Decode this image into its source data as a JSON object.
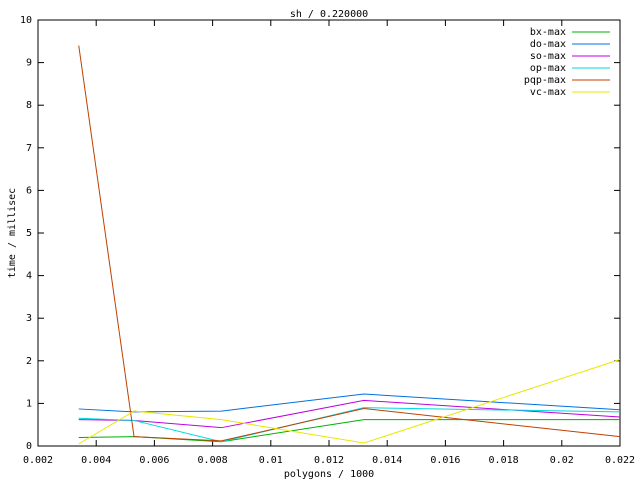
{
  "chart_data": {
    "type": "line",
    "title": "sh / 0.220000",
    "x_label": "polygons / 1000",
    "y_label": "time / millisec",
    "x": [
      0.0034,
      0.0053,
      0.0083,
      0.0132,
      0.022
    ],
    "series": [
      {
        "name": "bx-max",
        "color": "#00b000",
        "values": [
          0.2,
          0.22,
          0.1,
          0.62,
          0.62
        ]
      },
      {
        "name": "do-max",
        "color": "#0070e0",
        "values": [
          0.87,
          0.8,
          0.82,
          1.22,
          0.85
        ]
      },
      {
        "name": "so-max",
        "color": "#c000e0",
        "values": [
          0.62,
          0.6,
          0.43,
          1.07,
          0.68
        ]
      },
      {
        "name": "op-max",
        "color": "#00d8e0",
        "values": [
          0.65,
          0.6,
          0.1,
          0.9,
          0.8
        ]
      },
      {
        "name": "pqp-max",
        "color": "#c04000",
        "values": [
          9.4,
          0.22,
          0.12,
          0.88,
          0.22
        ]
      },
      {
        "name": "vc-max",
        "color": "#e8e800",
        "values": [
          0.05,
          0.82,
          0.62,
          0.07,
          2.03
        ]
      }
    ],
    "xlim": [
      0.002,
      0.022
    ],
    "xticks": [
      0.002,
      0.004,
      0.006,
      0.008,
      0.01,
      0.012,
      0.014,
      0.016,
      0.018,
      0.02,
      0.022
    ],
    "ylim": [
      0,
      10
    ],
    "yticks": [
      0,
      1,
      2,
      3,
      4,
      5,
      6,
      7,
      8,
      9,
      10
    ],
    "grid": false,
    "legend": "top-right"
  }
}
